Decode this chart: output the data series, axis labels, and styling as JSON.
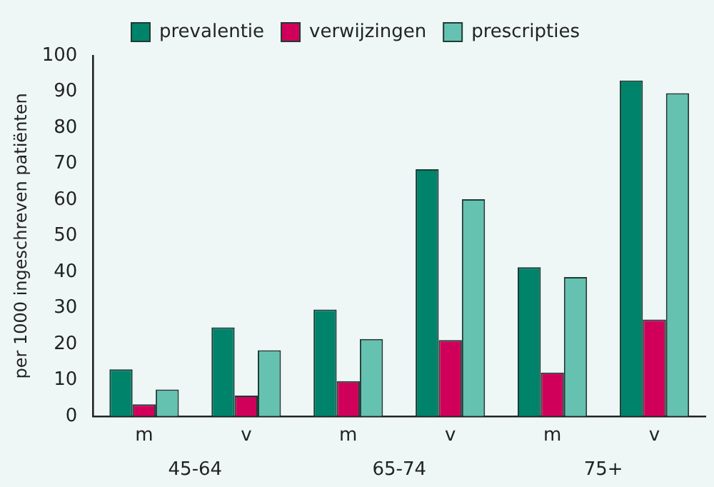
{
  "chart_data": {
    "type": "bar",
    "ylabel": "per 1000 ingeschreven patiënten",
    "categories": [
      "m",
      "v",
      "m",
      "v",
      "m",
      "v"
    ],
    "series": [
      {
        "name": "prevalentie",
        "color": "#00836b",
        "values": [
          13,
          24.6,
          29.6,
          68.5,
          41.3,
          93.1
        ]
      },
      {
        "name": "verwijzingen",
        "color": "#d0005a",
        "values": [
          3.3,
          5.7,
          9.7,
          21.1,
          12.1,
          26.8
        ]
      },
      {
        "name": "prescripties",
        "color": "#66c2b0",
        "values": [
          7.4,
          18.3,
          21.4,
          60.2,
          38.6,
          89.6
        ]
      }
    ],
    "annotations": [
      "45-64",
      "65-74",
      "75+"
    ],
    "ylim": [
      0,
      100
    ],
    "yticks": [
      0,
      10,
      20,
      30,
      40,
      50,
      60,
      70,
      80,
      90,
      100
    ],
    "grid": false,
    "legend": "top"
  }
}
